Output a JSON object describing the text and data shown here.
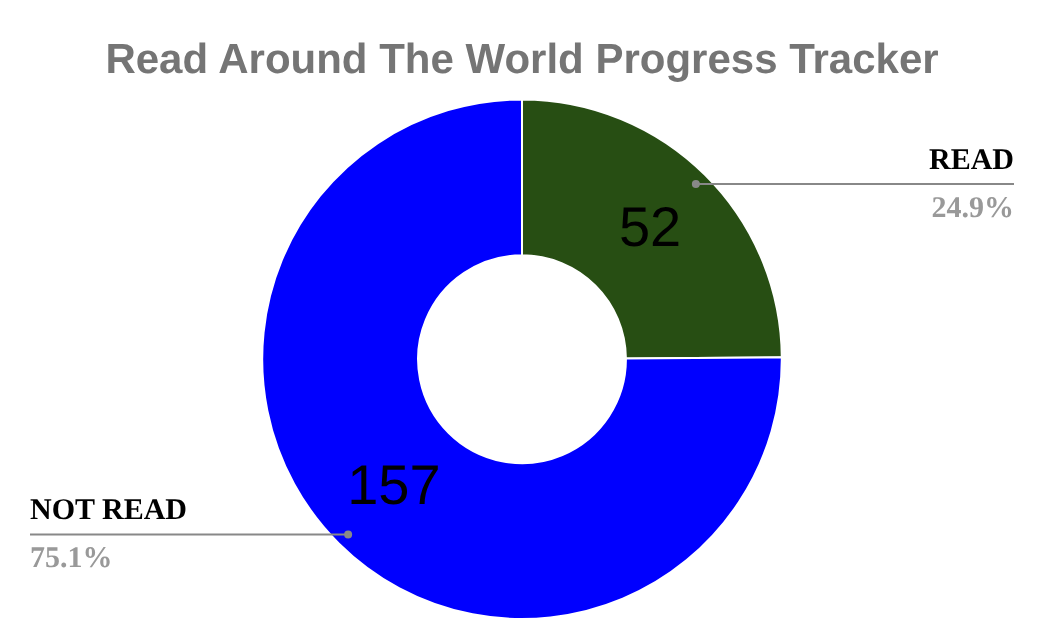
{
  "chart_data": {
    "type": "donut",
    "title": "Read Around The World Progress Tracker",
    "categories": [
      "READ",
      "NOT READ"
    ],
    "values": [
      52,
      157
    ],
    "colors": [
      "#274e13",
      "#0000ff"
    ],
    "data_labels": true,
    "annotations": [
      "24.9%",
      "75.1%"
    ],
    "legend": false
  }
}
